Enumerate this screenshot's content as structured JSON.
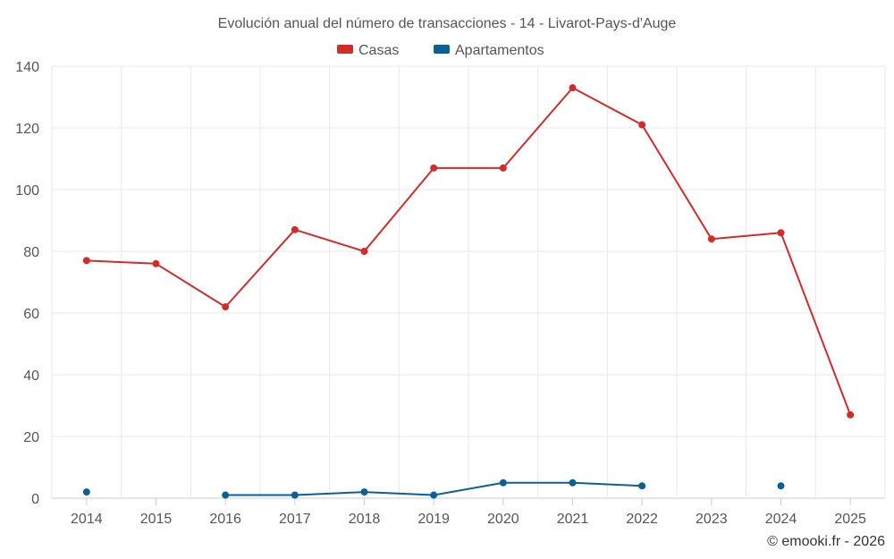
{
  "chart_data": {
    "type": "line",
    "title": "Evolución anual del número de transacciones - 14 - Livarot-Pays-d'Auge",
    "categories": [
      "2014",
      "2015",
      "2016",
      "2017",
      "2018",
      "2019",
      "2020",
      "2021",
      "2022",
      "2023",
      "2024",
      "2025"
    ],
    "ylim": [
      0,
      140
    ],
    "yticks": [
      0,
      20,
      40,
      60,
      80,
      100,
      120,
      140
    ],
    "grid": true,
    "legend_position": "top-center",
    "series": [
      {
        "name": "Casas",
        "color": "#d42a2a",
        "values": [
          77,
          76,
          62,
          87,
          80,
          107,
          107,
          133,
          121,
          84,
          86,
          27
        ]
      },
      {
        "name": "Apartamentos",
        "color": "#0b6096",
        "values": [
          2,
          null,
          1,
          1,
          2,
          1,
          5,
          5,
          4,
          null,
          4,
          null
        ]
      }
    ],
    "credit": "© emooki.fr - 2026"
  }
}
